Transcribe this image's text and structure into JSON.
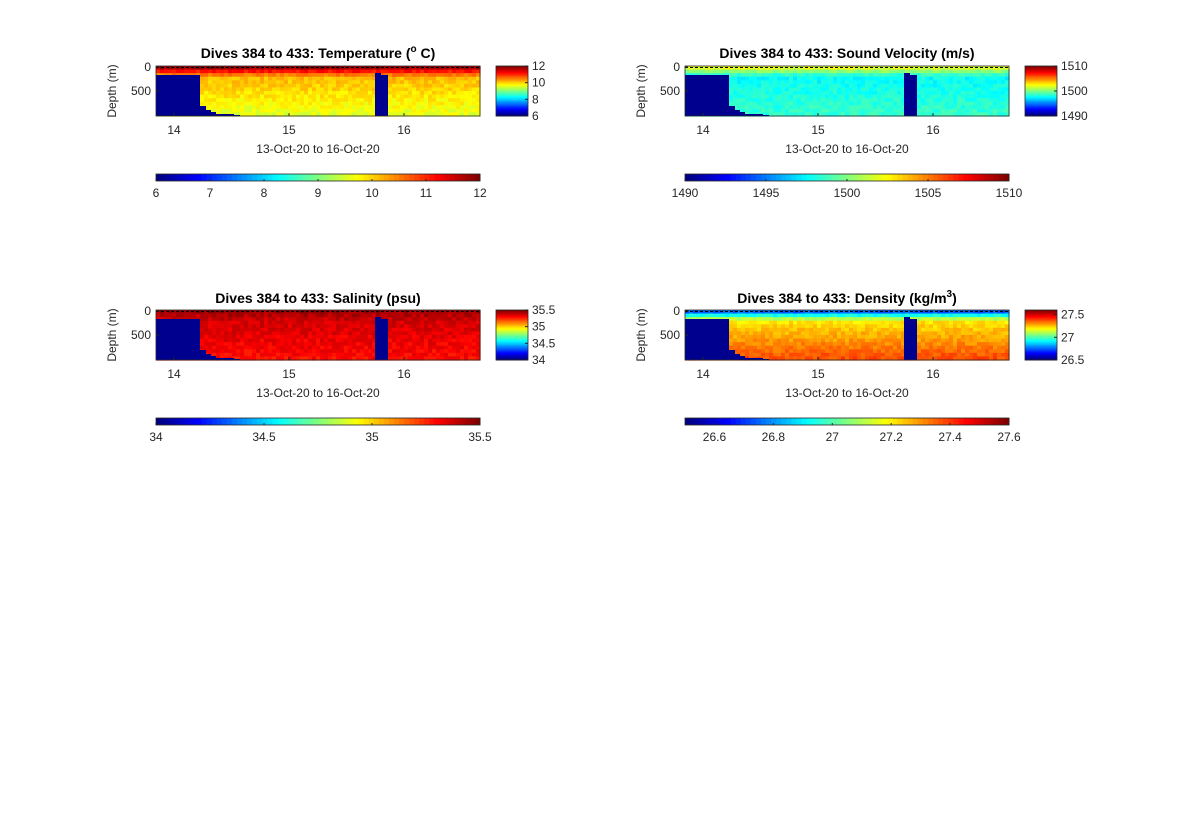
{
  "chart_data": [
    {
      "type": "heatmap",
      "title": "Dives 384 to 433: Temperature (",
      "title_sup": "o",
      "title_end": " C)",
      "xlabel": "13-Oct-20 to 16-Oct-20",
      "ylabel": "Depth (m)",
      "x_ticks": [
        "14",
        "15",
        "16"
      ],
      "y_ticks": [
        "0",
        "500"
      ],
      "ylim": [
        0,
        1000
      ],
      "colorbar_ticks": [
        "12",
        "10",
        "8",
        "6"
      ],
      "horizontal_colorbar_ticks": [
        "6",
        "7",
        "8",
        "9",
        "10",
        "11",
        "12"
      ],
      "clim": [
        6,
        12
      ],
      "profile": {
        "surface": 11.8,
        "mid": 10.2,
        "deep": 9.6
      },
      "values": [
        [
          11.8,
          11.5,
          11.6
        ],
        [
          10.4,
          10.1,
          10.3
        ],
        [
          9.8,
          9.4,
          9.7
        ]
      ],
      "gaps": [
        {
          "start": "13-Oct-20 19:00",
          "end": "14-Oct-20 02:00",
          "depth_from": 200
        },
        {
          "start": "15-Oct-20 19:00",
          "end": "15-Oct-20 21:00",
          "depth_from": 150
        }
      ]
    },
    {
      "type": "heatmap",
      "title": "Dives 384 to 433: Sound Velocity (m/s)",
      "title_sup": "",
      "title_end": "",
      "xlabel": "13-Oct-20 to 16-Oct-20",
      "ylabel": "Depth (m)",
      "x_ticks": [
        "14",
        "15",
        "16"
      ],
      "y_ticks": [
        "0",
        "500"
      ],
      "ylim": [
        0,
        1000
      ],
      "colorbar_ticks": [
        "1510",
        "1500",
        "1490"
      ],
      "horizontal_colorbar_ticks": [
        "1490",
        "1495",
        "1500",
        "1505",
        "1510"
      ],
      "clim": [
        1490,
        1510
      ],
      "profile": {
        "surface": 1502,
        "mid": 1497.5,
        "deep": 1498.5
      },
      "values": [
        [
          1502,
          1501,
          1502
        ],
        [
          1497.5,
          1497,
          1497.8
        ],
        [
          1498.5,
          1498,
          1499
        ]
      ],
      "gaps": [
        {
          "start": "13-Oct-20 19:00",
          "end": "14-Oct-20 02:00",
          "depth_from": 200
        },
        {
          "start": "15-Oct-20 19:00",
          "end": "15-Oct-20 21:00",
          "depth_from": 150
        }
      ]
    },
    {
      "type": "heatmap",
      "title": "Dives 384 to 433: Salinity (psu)",
      "title_sup": "",
      "title_end": "",
      "xlabel": "13-Oct-20 to 16-Oct-20",
      "ylabel": "Depth (m)",
      "x_ticks": [
        "14",
        "15",
        "16"
      ],
      "y_ticks": [
        "0",
        "500"
      ],
      "ylim": [
        0,
        1000
      ],
      "colorbar_ticks": [
        "35.5",
        "35",
        "34.5",
        "34"
      ],
      "horizontal_colorbar_ticks": [
        "34",
        "34.5",
        "35",
        "35.5"
      ],
      "clim": [
        34,
        35.5
      ],
      "profile": {
        "surface": 35.45,
        "mid": 35.38,
        "deep": 35.3
      },
      "values": [
        [
          35.45,
          35.42,
          35.44
        ],
        [
          35.38,
          35.36,
          35.37
        ],
        [
          35.3,
          35.28,
          35.31
        ]
      ],
      "gaps": [
        {
          "start": "13-Oct-20 19:00",
          "end": "14-Oct-20 02:00",
          "depth_from": 200
        },
        {
          "start": "15-Oct-20 19:00",
          "end": "15-Oct-20 21:00",
          "depth_from": 150
        }
      ]
    },
    {
      "type": "heatmap",
      "title": "Dives 384 to 433: Density (kg/m",
      "title_sup": "3",
      "title_end": ")",
      "xlabel": "13-Oct-20 to 16-Oct-20",
      "ylabel": "Depth (m)",
      "x_ticks": [
        "14",
        "15",
        "16"
      ],
      "y_ticks": [
        "0",
        "500"
      ],
      "ylim": [
        0,
        1000
      ],
      "colorbar_ticks": [
        "27.5",
        "27",
        "26.5"
      ],
      "horizontal_colorbar_ticks": [
        "26.6",
        "26.8",
        "27",
        "27.2",
        "27.4",
        "27.6"
      ],
      "clim": [
        26.5,
        27.6
      ],
      "profile": {
        "surface": 26.75,
        "mid": 27.2,
        "deep": 27.38
      },
      "values": [
        [
          26.75,
          26.8,
          26.78
        ],
        [
          27.2,
          27.22,
          27.25
        ],
        [
          27.38,
          27.36,
          27.4
        ]
      ],
      "gaps": [
        {
          "start": "13-Oct-20 19:00",
          "end": "14-Oct-20 02:00",
          "depth_from": 200
        },
        {
          "start": "15-Oct-20 19:00",
          "end": "15-Oct-20 21:00",
          "depth_from": 150
        }
      ]
    }
  ]
}
